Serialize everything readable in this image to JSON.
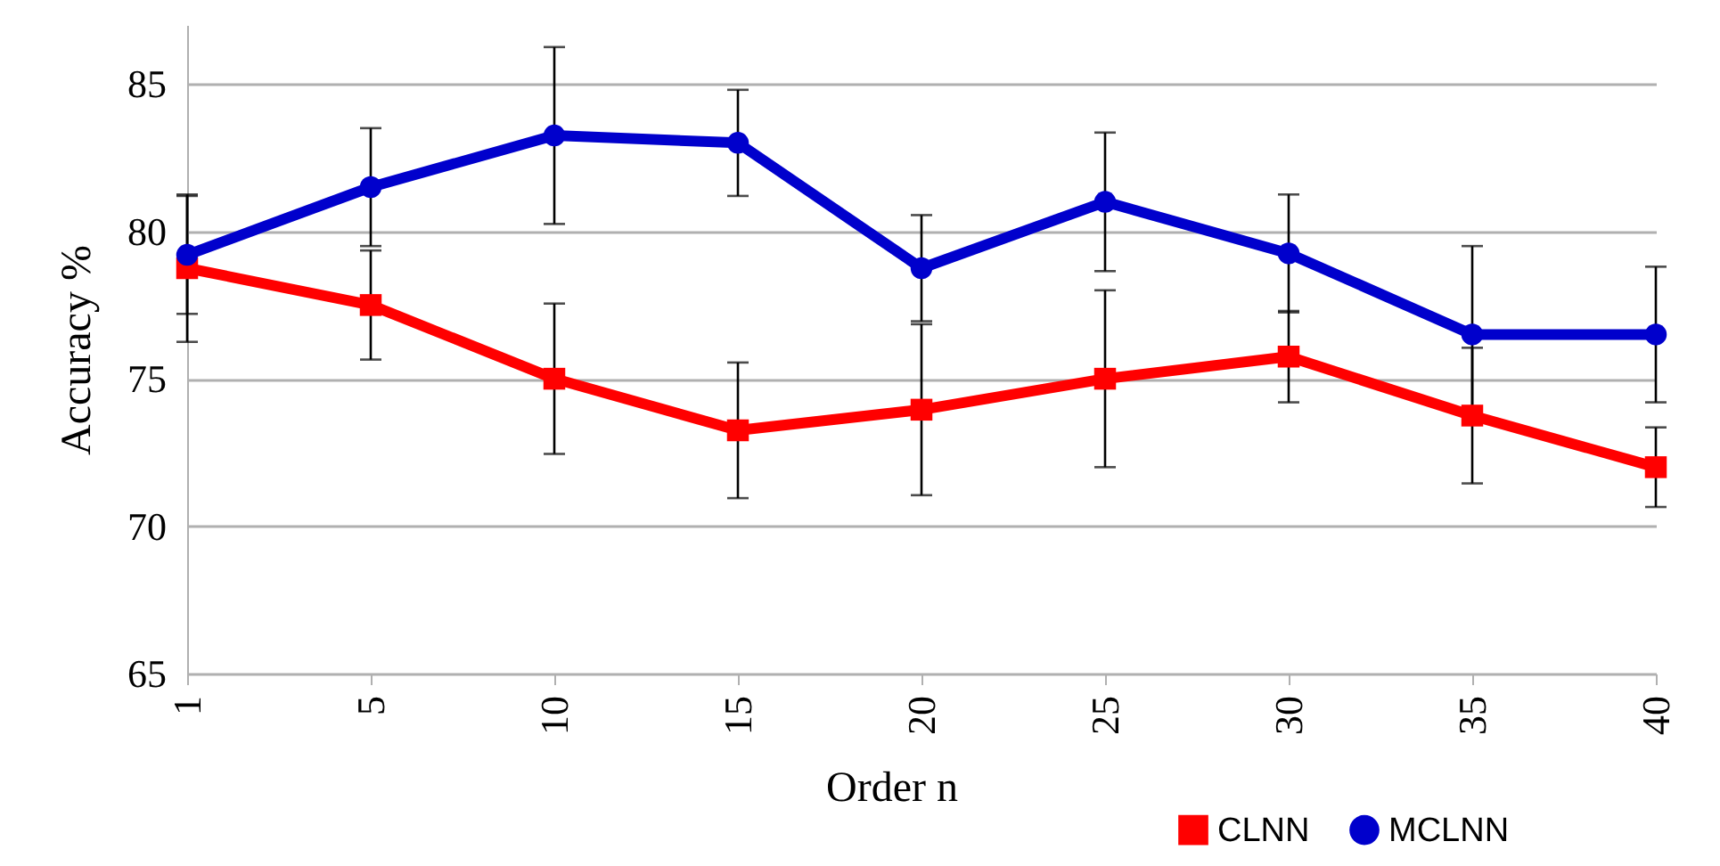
{
  "chart_data": {
    "type": "line",
    "xlabel": "Order n",
    "ylabel": "Accuracy %",
    "categories": [
      "1",
      "5",
      "10",
      "15",
      "20",
      "25",
      "30",
      "35",
      "40"
    ],
    "series": [
      {
        "name": "CLNN",
        "color": "#ff0000",
        "marker": "square",
        "values": [
          78.75,
          77.5,
          75.0,
          73.25,
          73.95,
          75.0,
          75.75,
          73.75,
          72.0
        ],
        "errors": [
          2.5,
          1.85,
          2.55,
          2.3,
          2.9,
          3.0,
          1.55,
          2.3,
          1.35
        ]
      },
      {
        "name": "MCLNN",
        "color": "#0000cc",
        "marker": "circle",
        "values": [
          79.2,
          81.5,
          83.25,
          83.0,
          78.75,
          81.0,
          79.25,
          76.5,
          76.5
        ],
        "errors": [
          2.0,
          2.0,
          3.0,
          1.8,
          1.8,
          2.35,
          2.0,
          3.0,
          2.3
        ]
      }
    ],
    "ylim": [
      65,
      87
    ],
    "yticks": [
      65,
      70,
      75,
      80,
      85
    ],
    "grid": "y",
    "legend": "bottom right",
    "line_style": "solid"
  }
}
